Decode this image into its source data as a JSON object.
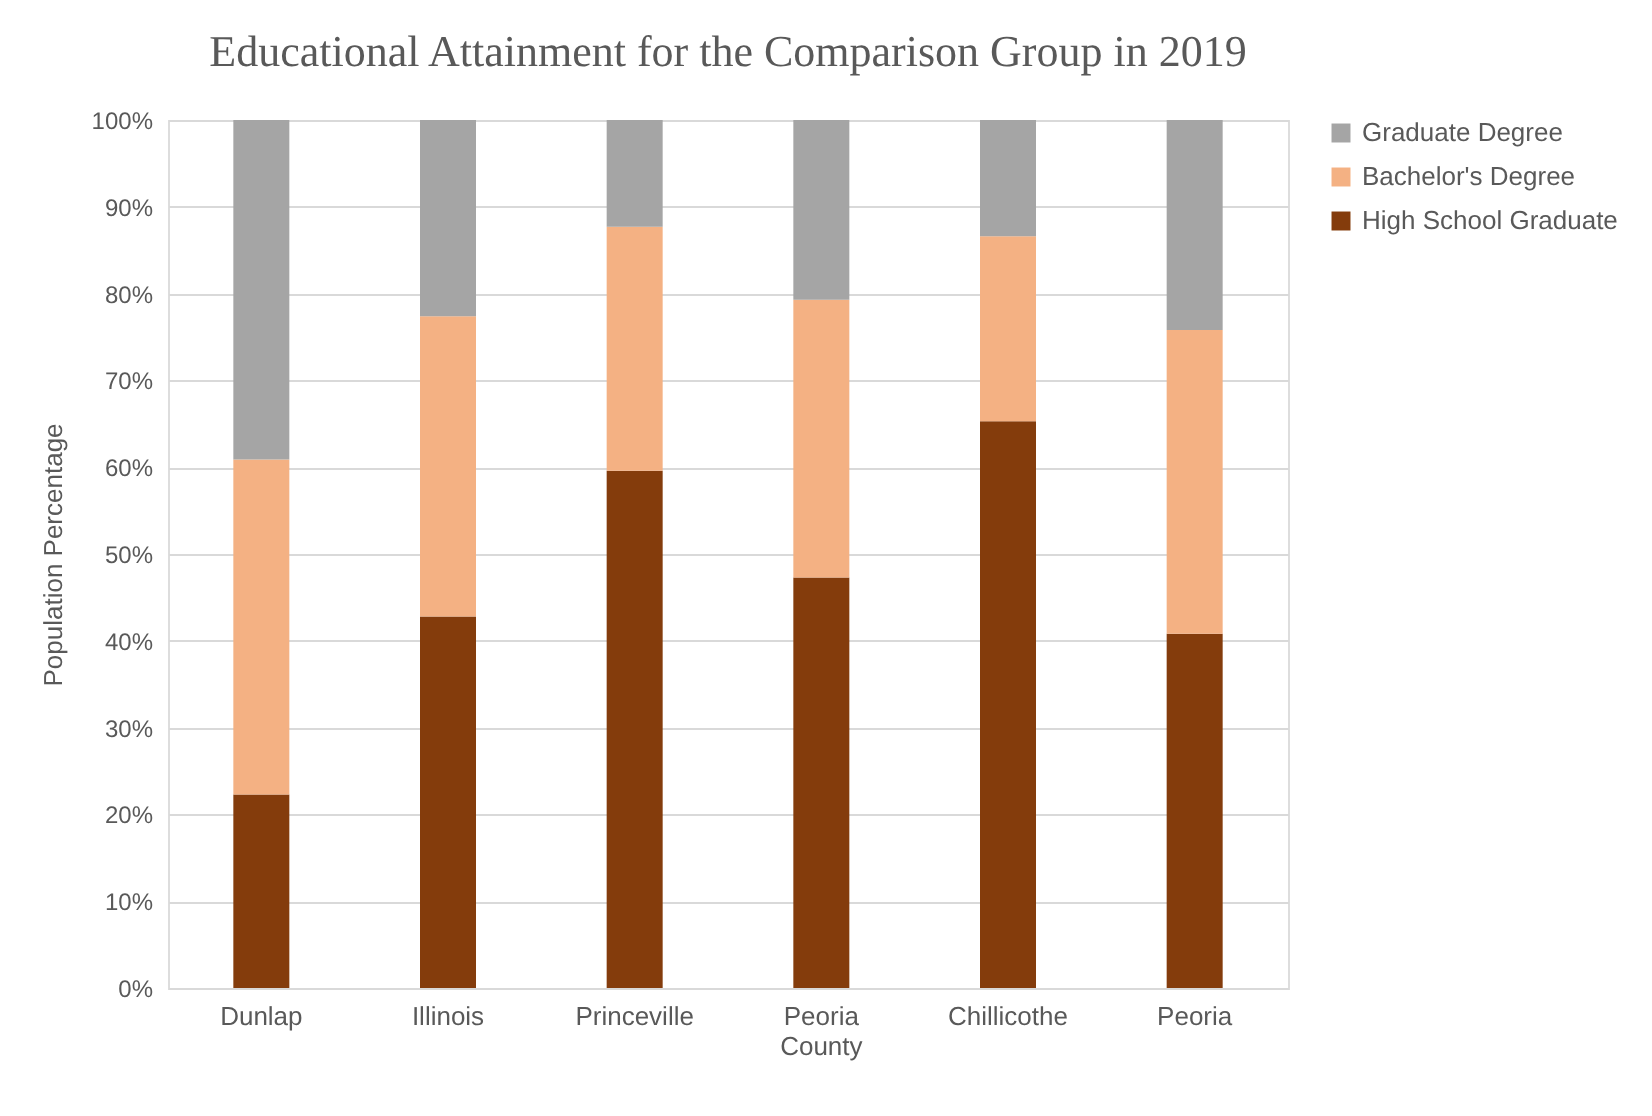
{
  "chart_data": {
    "type": "bar",
    "title": "Educational Attainment for the Comparison Group in 2019",
    "ylabel": "Population Percentage",
    "stacked": true,
    "categories": [
      "Dunlap",
      "Illinois",
      "Princeville",
      "Peoria County",
      "Chillicothe",
      "Peoria"
    ],
    "series": [
      {
        "name": "High School Graduate",
        "color": "#843c0c",
        "values": [
          22.3,
          42.8,
          59.6,
          47.3,
          65.3,
          40.8
        ]
      },
      {
        "name": "Bachelor's Degree",
        "color": "#f4b183",
        "values": [
          38.6,
          34.6,
          28.1,
          32.0,
          21.3,
          35.0
        ]
      },
      {
        "name": "Graduate Degree",
        "color": "#a5a5a5",
        "values": [
          39.1,
          22.6,
          12.3,
          20.7,
          13.4,
          24.2
        ]
      }
    ],
    "ylim": [
      0,
      100
    ],
    "yticks": [
      {
        "value": 0,
        "label": "0%"
      },
      {
        "value": 10,
        "label": "10%"
      },
      {
        "value": 20,
        "label": "20%"
      },
      {
        "value": 30,
        "label": "30%"
      },
      {
        "value": 40,
        "label": "40%"
      },
      {
        "value": 50,
        "label": "50%"
      },
      {
        "value": 60,
        "label": "60%"
      },
      {
        "value": 70,
        "label": "70%"
      },
      {
        "value": 80,
        "label": "80%"
      },
      {
        "value": 90,
        "label": "90%"
      },
      {
        "value": 100,
        "label": "100%"
      }
    ],
    "grid": "y",
    "legend": "right"
  }
}
